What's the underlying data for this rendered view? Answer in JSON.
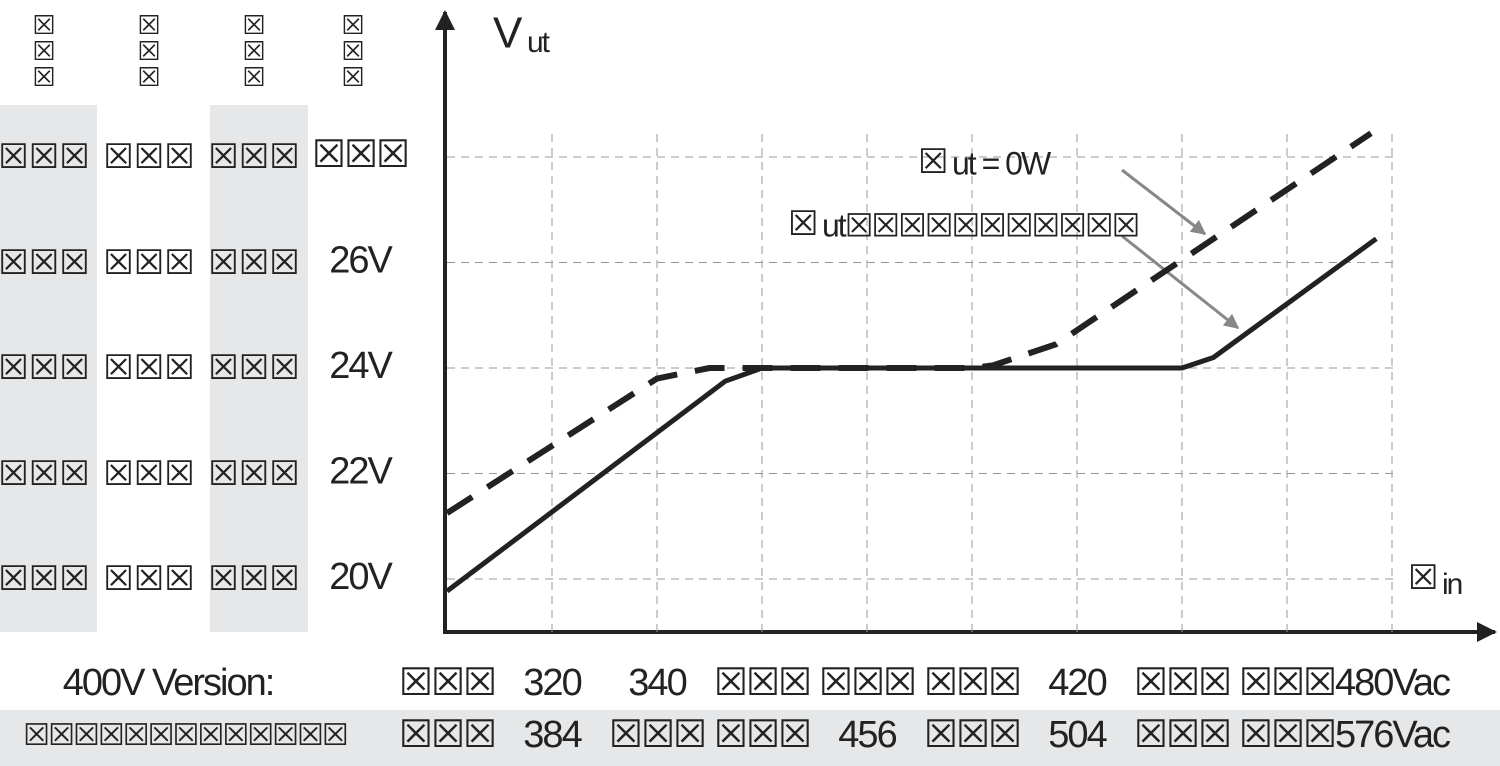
{
  "chart_data": {
    "type": "line",
    "ylabel": [
      "V",
      "ut"
    ],
    "xlabel": [
      "☒",
      "in"
    ],
    "xlim": [
      300,
      490
    ],
    "ylim": [
      19,
      30.5
    ],
    "xticks": [
      {
        "value": 300,
        "label": "☒☒☒"
      },
      {
        "value": 320,
        "label": "320"
      },
      {
        "value": 340,
        "label": "340"
      },
      {
        "value": 360,
        "label": "☒☒☒"
      },
      {
        "value": 380,
        "label": "☒☒☒"
      },
      {
        "value": 400,
        "label": "☒☒☒"
      },
      {
        "value": 420,
        "label": "420"
      },
      {
        "value": 440,
        "label": "☒☒☒"
      },
      {
        "value": 460,
        "label": "☒☒☒"
      },
      {
        "value": 480,
        "label": "480Vac"
      }
    ],
    "xrow_labels": [
      "400V Version:",
      "☒☒☒☒☒☒☒☒☒☒☒☒☒"
    ],
    "xticks_row2": [
      "☒☒☒",
      "384",
      "☒☒☒",
      "☒☒☒",
      "456",
      "☒☒☒",
      "504",
      "☒☒☒",
      "☒☒☒",
      "576Vac"
    ],
    "yticks": [
      {
        "value": 20,
        "label": "20V"
      },
      {
        "value": 22,
        "label": "22V"
      },
      {
        "value": 24,
        "label": "24V"
      },
      {
        "value": 26,
        "label": "26V"
      },
      {
        "value": 28,
        "label": "☒☒☒"
      }
    ],
    "ytick_header": "☒☒☒",
    "other_columns": [
      {
        "header": "☒☒☒",
        "labels": [
          "☒☒☒",
          "☒☒☒",
          "☒☒☒",
          "☒☒☒",
          "☒☒☒"
        ]
      },
      {
        "header": "☒☒☒",
        "labels": [
          "☒☒☒",
          "☒☒☒",
          "☒☒☒",
          "☒☒☒",
          "☒☒☒"
        ]
      },
      {
        "header": "☒☒☒",
        "labels": [
          "☒☒☒",
          "☒☒☒",
          "☒☒☒",
          "☒☒☒",
          "☒☒☒"
        ]
      }
    ],
    "grid": true,
    "series": [
      {
        "name": [
          "☒",
          "ut = 0W"
        ],
        "style": "dashed",
        "color": "#222",
        "x": [
          300,
          340,
          350,
          356,
          400,
          404,
          416,
          476
        ],
        "values": [
          21.25,
          23.8,
          24,
          24,
          24,
          24.05,
          24.45,
          28.45
        ]
      },
      {
        "name": [
          "☒",
          "ut☒☒☒☒☒☒☒☒☒☒☒"
        ],
        "style": "solid",
        "color": "#222",
        "x": [
          300,
          353,
          360,
          440,
          446,
          477
        ],
        "values": [
          19.77,
          23.75,
          24,
          24,
          24.2,
          26.45
        ]
      }
    ]
  }
}
